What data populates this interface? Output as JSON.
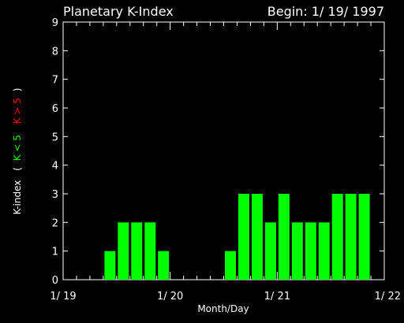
{
  "chart_data": {
    "type": "bar",
    "title": "Planetary K-Index",
    "begin_label": "Begin: 1/ 19/ 1997",
    "xlabel": "Month/Day",
    "ylabel_parts": {
      "prefix": "K-index",
      "open": "(",
      "low": "K < 5",
      "high": "K > 5",
      "close": ")"
    },
    "ylim": [
      0,
      9
    ],
    "yticks": [
      "0",
      "1",
      "2",
      "3",
      "4",
      "5",
      "6",
      "7",
      "8",
      "9"
    ],
    "xlim": [
      0,
      24
    ],
    "xticks": [
      {
        "label": "1/ 19",
        "pos": 0
      },
      {
        "label": "1/ 20",
        "pos": 8
      },
      {
        "label": "1/ 21",
        "pos": 16
      },
      {
        "label": "1/ 22",
        "pos": 24
      }
    ],
    "values": [
      0,
      0,
      0,
      1,
      2,
      2,
      2,
      1,
      0,
      0,
      0,
      0,
      1,
      3,
      3,
      2,
      3,
      2,
      2,
      2,
      3,
      3,
      3,
      0
    ],
    "colors": {
      "background": "#000000",
      "axes": "#ffffff",
      "bar_low": "#00ff00",
      "bar_high": "#ff0000",
      "label_low": "#00ff00",
      "label_high": "#ff0000"
    }
  }
}
